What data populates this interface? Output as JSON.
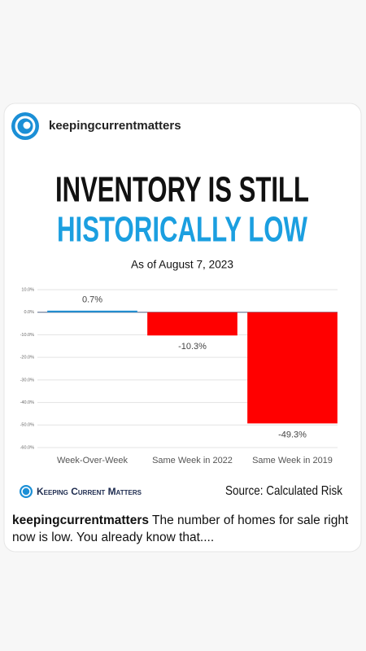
{
  "post": {
    "account": "keepingcurrentmatters",
    "caption_account": "keepingcurrentmatters",
    "caption": "The number of homes for sale right now is low. You already know that...."
  },
  "graphic": {
    "title_line1": "INVENTORY IS STILL",
    "title_line2": "HISTORICALLY LOW",
    "subtitle": "As of August 7, 2023",
    "brand": "Keeping Current Matters",
    "source": "Source: Calculated Risk"
  },
  "chart_data": {
    "type": "bar",
    "categories": [
      "Week-Over-Week",
      "Same Week in 2022",
      "Same Week in 2019"
    ],
    "values": [
      0.7,
      -10.3,
      -49.3
    ],
    "value_labels": [
      "0.7%",
      "-10.3%",
      "-49.3%"
    ],
    "colors": [
      "#1b8fd6",
      "#ff0000",
      "#ff0000"
    ],
    "ylim": [
      -60,
      10
    ],
    "yticks": [
      {
        "value": 10,
        "label": "10.0%"
      },
      {
        "value": 0,
        "label": "0.0%"
      },
      {
        "value": -10,
        "label": "-10.0%"
      },
      {
        "value": -20,
        "label": "-20.0%"
      },
      {
        "value": -30,
        "label": "-30.0%"
      },
      {
        "value": -40,
        "label": "-40.0%"
      },
      {
        "value": -50,
        "label": "-50.0%"
      },
      {
        "value": -60,
        "label": "-60.0%"
      }
    ],
    "grid": true
  }
}
